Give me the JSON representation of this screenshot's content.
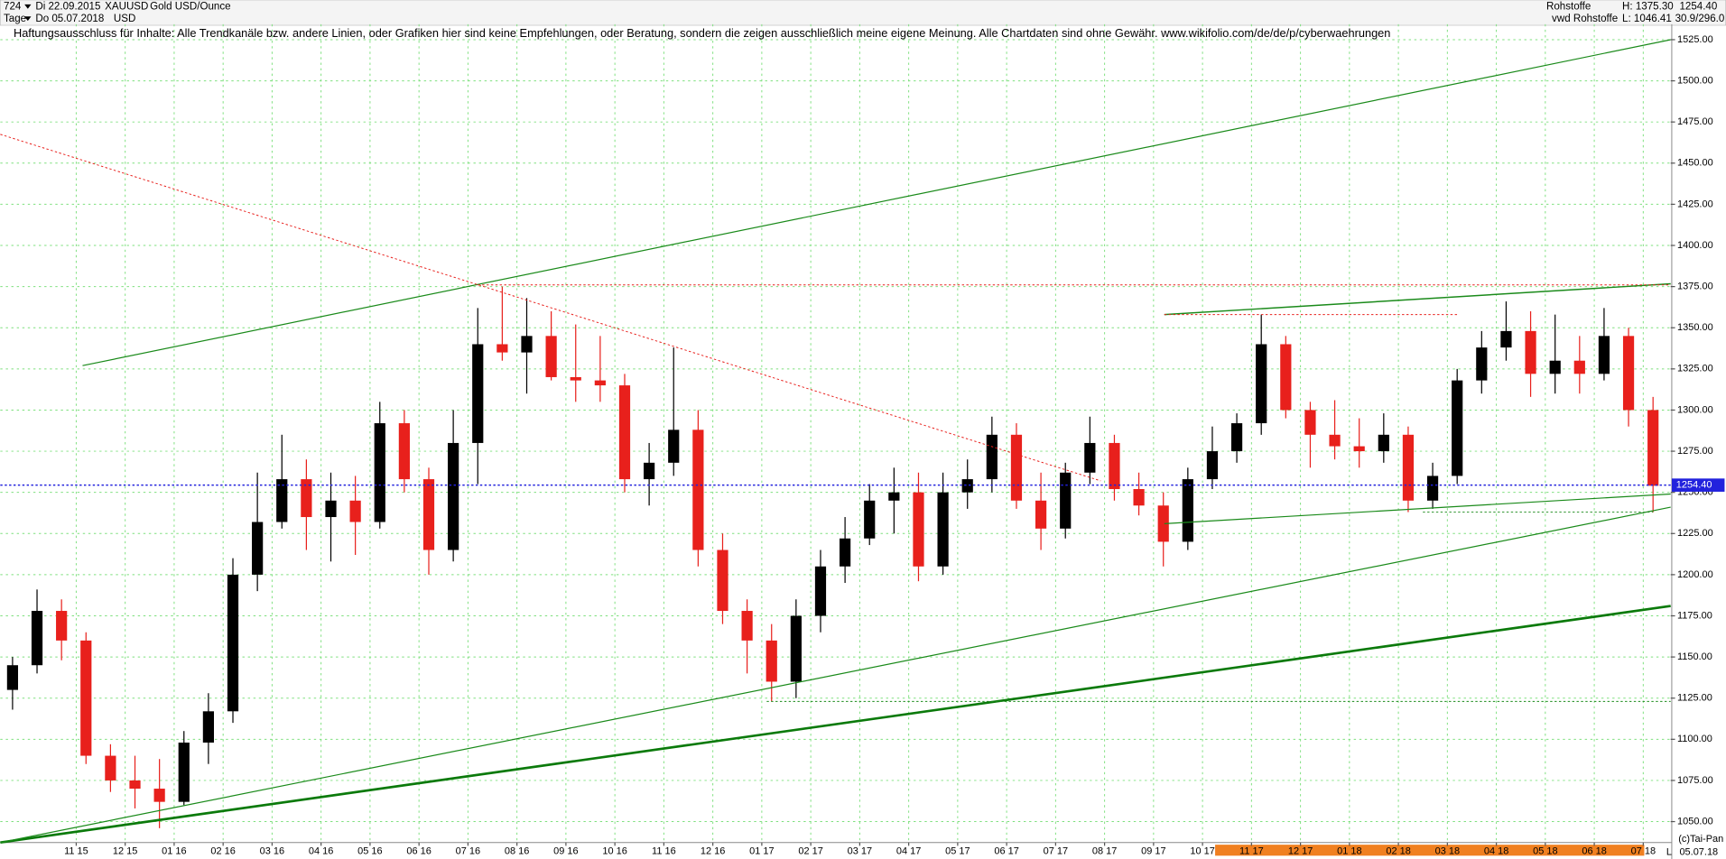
{
  "header": {
    "count": "724",
    "start": "Di 22.09.2015",
    "period": "Tage",
    "end": "Do 05.07.2018",
    "symbol": "XAUUSD",
    "currency": "USD",
    "name": "Gold USD/Ounce",
    "group": "Rohstoffe",
    "source": "vwd Rohstoffe",
    "high": "H: 1375.30",
    "low": "L: 1046.41",
    "range": "30.9/296.0"
  },
  "footer": {
    "copyright": "(c)Tai-Pan",
    "scale": "L",
    "date": "05.07.18"
  },
  "chart_data": {
    "type": "candlestick",
    "annotation": "Haftungsausschluss für Inhalte: Alle Trendkanäle bzw. andere Linien, oder Grafiken hier sind keine Empfehlungen, oder Beratung, sondern die zeigen ausschließlich meine eigene Meinung. Alle Chartdaten sind ohne Gewähr.  www.wikifolio.com/de/de/p/cyberwaehrungen",
    "up_color": "#000000",
    "down_color": "#e8201c",
    "grid": true,
    "last": {
      "value": 1254.4,
      "label": "1254.40",
      "color": "#2222dd"
    },
    "xlim": [
      -0.55,
      33.56
    ],
    "ylim": [
      1037.3,
      1534.4
    ],
    "xticks": [
      {
        "value": 1,
        "label": "11 15"
      },
      {
        "value": 2,
        "label": "12 15"
      },
      {
        "value": 3,
        "label": "01 16"
      },
      {
        "value": 4,
        "label": "02 16"
      },
      {
        "value": 5,
        "label": "03 16"
      },
      {
        "value": 6,
        "label": "04 16"
      },
      {
        "value": 7,
        "label": "05 16"
      },
      {
        "value": 8,
        "label": "06 16"
      },
      {
        "value": 9,
        "label": "07 16"
      },
      {
        "value": 10,
        "label": "08 16"
      },
      {
        "value": 11,
        "label": "09 16"
      },
      {
        "value": 12,
        "label": "10 16"
      },
      {
        "value": 13,
        "label": "11 16"
      },
      {
        "value": 14,
        "label": "12 16"
      },
      {
        "value": 15,
        "label": "01 17"
      },
      {
        "value": 16,
        "label": "02 17"
      },
      {
        "value": 17,
        "label": "03 17"
      },
      {
        "value": 18,
        "label": "04 17"
      },
      {
        "value": 19,
        "label": "05 17"
      },
      {
        "value": 20,
        "label": "06 17"
      },
      {
        "value": 21,
        "label": "07 17"
      },
      {
        "value": 22,
        "label": "08 17"
      },
      {
        "value": 23,
        "label": "09 17"
      },
      {
        "value": 24,
        "label": "10 17"
      },
      {
        "value": 25,
        "label": "11 17"
      },
      {
        "value": 26,
        "label": "12 17"
      },
      {
        "value": 27,
        "label": "01 18"
      },
      {
        "value": 28,
        "label": "02 18"
      },
      {
        "value": 29,
        "label": "03 18"
      },
      {
        "value": 30,
        "label": "04 18"
      },
      {
        "value": 31,
        "label": "05 18"
      },
      {
        "value": 32,
        "label": "06 18"
      },
      {
        "value": 33,
        "label": "07 18"
      }
    ],
    "yticks": [
      {
        "value": 1050,
        "label": "1050.00"
      },
      {
        "value": 1075,
        "label": "1075.00"
      },
      {
        "value": 1100,
        "label": "1100.00"
      },
      {
        "value": 1125,
        "label": "1125.00"
      },
      {
        "value": 1150,
        "label": "1150.00"
      },
      {
        "value": 1175,
        "label": "1175.00"
      },
      {
        "value": 1200,
        "label": "1200.00"
      },
      {
        "value": 1225,
        "label": "1225.00"
      },
      {
        "value": 1250,
        "label": "1250.00"
      },
      {
        "value": 1275,
        "label": "1275.00"
      },
      {
        "value": 1300,
        "label": "1300.00"
      },
      {
        "value": 1325,
        "label": "1325.00"
      },
      {
        "value": 1350,
        "label": "1350.00"
      },
      {
        "value": 1375,
        "label": "1375.00"
      },
      {
        "value": 1400,
        "label": "1400.00"
      },
      {
        "value": 1425,
        "label": "1425.00"
      },
      {
        "value": 1450,
        "label": "1450.00"
      },
      {
        "value": 1475,
        "label": "1475.00"
      },
      {
        "value": 1500,
        "label": "1500.00"
      },
      {
        "value": 1525,
        "label": "1525.00"
      }
    ],
    "x": [
      -0.3,
      0.2,
      0.7,
      1.2,
      1.7,
      2.2,
      2.7,
      3.2,
      3.7,
      4.2,
      4.7,
      5.2,
      5.7,
      6.2,
      6.7,
      7.2,
      7.7,
      8.2,
      8.7,
      9.2,
      9.7,
      10.2,
      10.7,
      11.2,
      11.7,
      12.2,
      12.7,
      13.2,
      13.7,
      14.2,
      14.7,
      15.2,
      15.7,
      16.2,
      16.7,
      17.2,
      17.7,
      18.2,
      18.7,
      19.2,
      19.7,
      20.2,
      20.7,
      21.2,
      21.7,
      22.2,
      22.7,
      23.2,
      23.7,
      24.2,
      24.7,
      25.2,
      25.7,
      26.2,
      26.7,
      27.2,
      27.7,
      28.2,
      28.7,
      29.2,
      29.7,
      30.2,
      30.7,
      31.2,
      31.7,
      32.2,
      32.7,
      33.2
    ],
    "ohlc": [
      [
        1130,
        1150,
        1118,
        1145
      ],
      [
        1145,
        1191,
        1140,
        1178
      ],
      [
        1178,
        1185,
        1148,
        1160
      ],
      [
        1160,
        1165,
        1085,
        1090
      ],
      [
        1090,
        1097,
        1068,
        1075
      ],
      [
        1075,
        1090,
        1058,
        1070
      ],
      [
        1070,
        1088,
        1046,
        1062
      ],
      [
        1062,
        1105,
        1060,
        1098
      ],
      [
        1098,
        1128,
        1085,
        1117
      ],
      [
        1117,
        1210,
        1110,
        1200
      ],
      [
        1200,
        1262,
        1190,
        1232
      ],
      [
        1232,
        1285,
        1228,
        1258
      ],
      [
        1258,
        1270,
        1215,
        1235
      ],
      [
        1235,
        1262,
        1208,
        1245
      ],
      [
        1245,
        1260,
        1212,
        1232
      ],
      [
        1232,
        1305,
        1228,
        1292
      ],
      [
        1292,
        1300,
        1250,
        1258
      ],
      [
        1258,
        1265,
        1200,
        1215
      ],
      [
        1215,
        1300,
        1208,
        1280
      ],
      [
        1280,
        1362,
        1255,
        1340
      ],
      [
        1340,
        1375,
        1330,
        1335
      ],
      [
        1335,
        1368,
        1310,
        1345
      ],
      [
        1345,
        1360,
        1318,
        1320
      ],
      [
        1320,
        1352,
        1305,
        1318
      ],
      [
        1318,
        1345,
        1305,
        1315
      ],
      [
        1315,
        1322,
        1250,
        1258
      ],
      [
        1258,
        1280,
        1242,
        1268
      ],
      [
        1268,
        1338,
        1260,
        1288
      ],
      [
        1288,
        1300,
        1205,
        1215
      ],
      [
        1215,
        1225,
        1170,
        1178
      ],
      [
        1178,
        1185,
        1140,
        1160
      ],
      [
        1160,
        1170,
        1123,
        1135
      ],
      [
        1135,
        1185,
        1125,
        1175
      ],
      [
        1175,
        1215,
        1165,
        1205
      ],
      [
        1205,
        1235,
        1195,
        1222
      ],
      [
        1222,
        1255,
        1218,
        1245
      ],
      [
        1245,
        1265,
        1225,
        1250
      ],
      [
        1250,
        1262,
        1196,
        1205
      ],
      [
        1205,
        1262,
        1200,
        1250
      ],
      [
        1250,
        1270,
        1240,
        1258
      ],
      [
        1258,
        1296,
        1250,
        1285
      ],
      [
        1285,
        1292,
        1240,
        1245
      ],
      [
        1245,
        1262,
        1215,
        1228
      ],
      [
        1228,
        1268,
        1222,
        1262
      ],
      [
        1262,
        1296,
        1255,
        1280
      ],
      [
        1280,
        1285,
        1245,
        1252
      ],
      [
        1252,
        1262,
        1236,
        1242
      ],
      [
        1242,
        1250,
        1205,
        1220
      ],
      [
        1220,
        1265,
        1215,
        1258
      ],
      [
        1258,
        1290,
        1252,
        1275
      ],
      [
        1275,
        1298,
        1268,
        1292
      ],
      [
        1292,
        1358,
        1285,
        1340
      ],
      [
        1340,
        1345,
        1295,
        1300
      ],
      [
        1300,
        1305,
        1265,
        1285
      ],
      [
        1285,
        1306,
        1270,
        1278
      ],
      [
        1278,
        1295,
        1265,
        1275
      ],
      [
        1275,
        1298,
        1268,
        1285
      ],
      [
        1285,
        1290,
        1238,
        1245
      ],
      [
        1245,
        1268,
        1240,
        1260
      ],
      [
        1260,
        1325,
        1255,
        1318
      ],
      [
        1318,
        1348,
        1310,
        1338
      ],
      [
        1338,
        1366,
        1330,
        1348
      ],
      [
        1348,
        1360,
        1308,
        1322
      ],
      [
        1322,
        1358,
        1310,
        1330
      ],
      [
        1330,
        1345,
        1310,
        1322
      ],
      [
        1322,
        1362,
        1318,
        1345
      ],
      [
        1345,
        1350,
        1290,
        1300
      ],
      [
        1300,
        1308,
        1238,
        1254
      ]
    ],
    "lines": [
      {
        "color": "#1a8a1a",
        "width": 1,
        "dotted": false,
        "points": [
          1.13,
          1327,
          33.56,
          1525
        ]
      },
      {
        "color": "#0b7a0b",
        "width": 2.2,
        "dotted": false,
        "points": [
          -0.55,
          1037.3,
          33.56,
          1181
        ]
      },
      {
        "color": "#1a8a1a",
        "width": 1,
        "dotted": false,
        "points": [
          -0.55,
          1037.3,
          33.56,
          1241
        ]
      },
      {
        "color": "#1a8a1a",
        "width": 1.2,
        "dotted": false,
        "points": [
          23.22,
          1358,
          33.56,
          1376.7
        ]
      },
      {
        "color": "#1a8a1a",
        "width": 1,
        "dotted": false,
        "points": [
          23.22,
          1231,
          33.56,
          1249
        ]
      },
      {
        "color": "#e8201c",
        "width": 0.8,
        "dotted": true,
        "points": [
          -0.55,
          1467.5,
          21.92,
          1257
        ]
      },
      {
        "color": "#e8201c",
        "width": 0.8,
        "dotted": true,
        "points": [
          9.2,
          1376,
          33.56,
          1376
        ]
      },
      {
        "color": "#e8201c",
        "width": 0.8,
        "dotted": true,
        "points": [
          23.22,
          1358,
          29.2,
          1358
        ]
      },
      {
        "color": "#1a8a1a",
        "width": 0.8,
        "dotted": true,
        "points": [
          15.1,
          1123,
          33.56,
          1123
        ]
      },
      {
        "color": "#1a8a1a",
        "width": 0.8,
        "dotted": true,
        "points": [
          28.5,
          1238,
          33.2,
          1238
        ]
      }
    ]
  }
}
